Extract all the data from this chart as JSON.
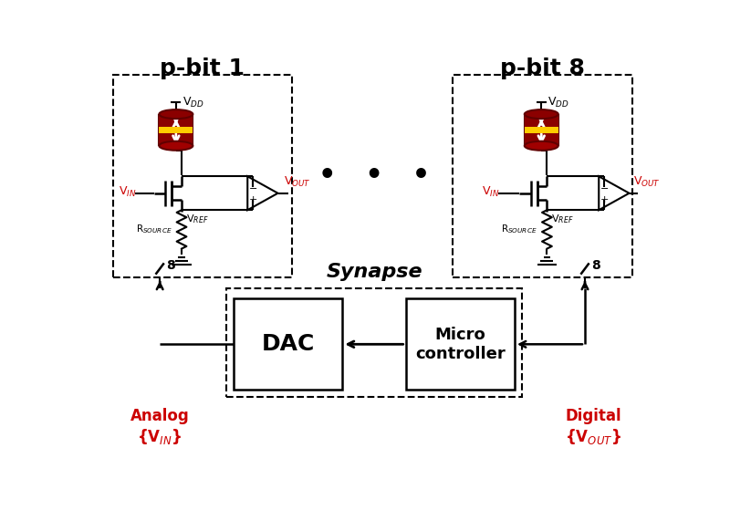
{
  "bg_color": "#ffffff",
  "black": "#000000",
  "red_color": "#cc0000",
  "dark_red": "#8b0000",
  "mid_red": "#a00000",
  "deep_red": "#600000",
  "yellow": "#ffcc00",
  "pbit1_label": "p-bit 1",
  "pbit8_label": "p-bit 8",
  "synapse_label": "Synapse",
  "dac_label": "DAC",
  "mc_label": "Micro\ncontroller",
  "vdd_label": "V$_{DD}$",
  "vin_label": "V$_{IN}$",
  "vout_label": "V$_{OUT}$",
  "vref_label": "V$_{REF}$",
  "rsource_label": "R$_{SOURCE}$",
  "analog_label": "Analog\n{V$_{IN}$}",
  "digital_label": "Digital\n{V$_{OUT}$}",
  "eight_label": "8"
}
